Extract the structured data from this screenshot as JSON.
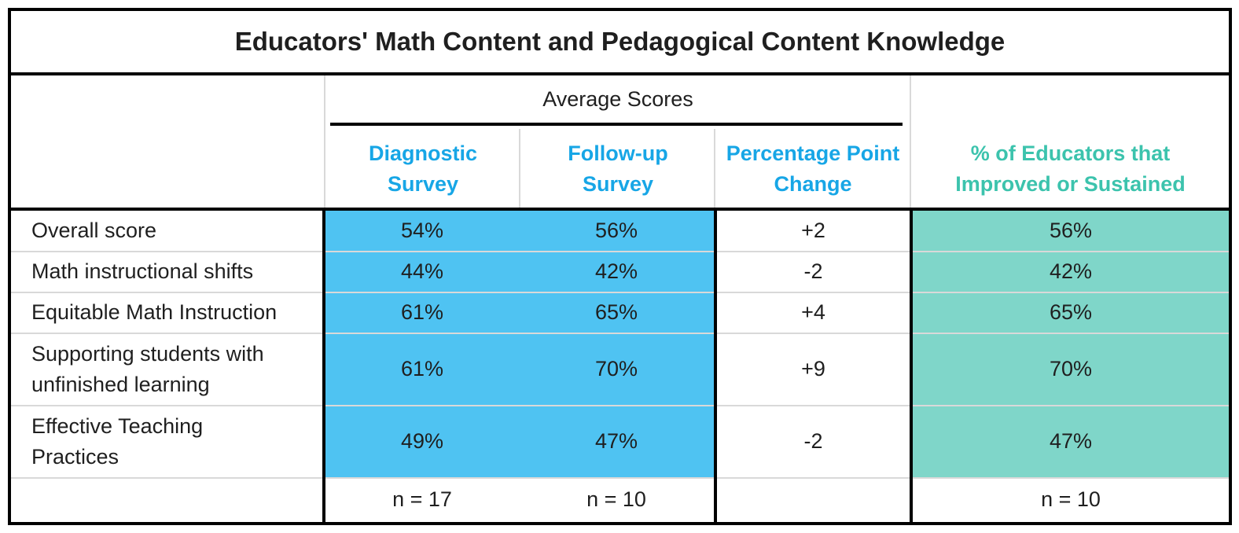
{
  "chart_data": {
    "type": "table",
    "title": "Educators' Math Content and Pedagogical Content Knowledge",
    "group_header": "Average Scores",
    "columns": [
      "Diagnostic Survey",
      "Follow-up Survey",
      "Percentage Point Change",
      "% of Educators that Improved or Sustained"
    ],
    "column_lines": [
      [
        "Diagnostic",
        "Survey"
      ],
      [
        "Follow-up",
        "Survey"
      ],
      [
        "Percentage Point",
        "Change"
      ],
      [
        "% of Educators that",
        "Improved or Sustained"
      ]
    ],
    "rows": [
      {
        "label_lines": [
          "Overall score"
        ],
        "diagnostic": "54%",
        "followup": "56%",
        "change": "+2",
        "improved": "56%"
      },
      {
        "label_lines": [
          "Math instructional shifts"
        ],
        "diagnostic": "44%",
        "followup": "42%",
        "change": "-2",
        "improved": "42%"
      },
      {
        "label_lines": [
          "Equitable Math Instruction"
        ],
        "diagnostic": "61%",
        "followup": "65%",
        "change": "+4",
        "improved": "65%"
      },
      {
        "label_lines": [
          "Supporting students with",
          "unfinished learning"
        ],
        "diagnostic": "61%",
        "followup": "70%",
        "change": "+9",
        "improved": "70%"
      },
      {
        "label_lines": [
          "Effective Teaching",
          "Practices"
        ],
        "diagnostic": "49%",
        "followup": "47%",
        "change": "-2",
        "improved": "47%"
      }
    ],
    "footer": {
      "diagnostic": "n = 17",
      "followup": "n = 10",
      "change": "",
      "improved": "n = 10"
    },
    "colors": {
      "score_fill": "#4fc3f2",
      "improved_fill": "#7fd6c9",
      "score_header": "#17a6e6",
      "improved_header": "#3cc3ad"
    }
  }
}
